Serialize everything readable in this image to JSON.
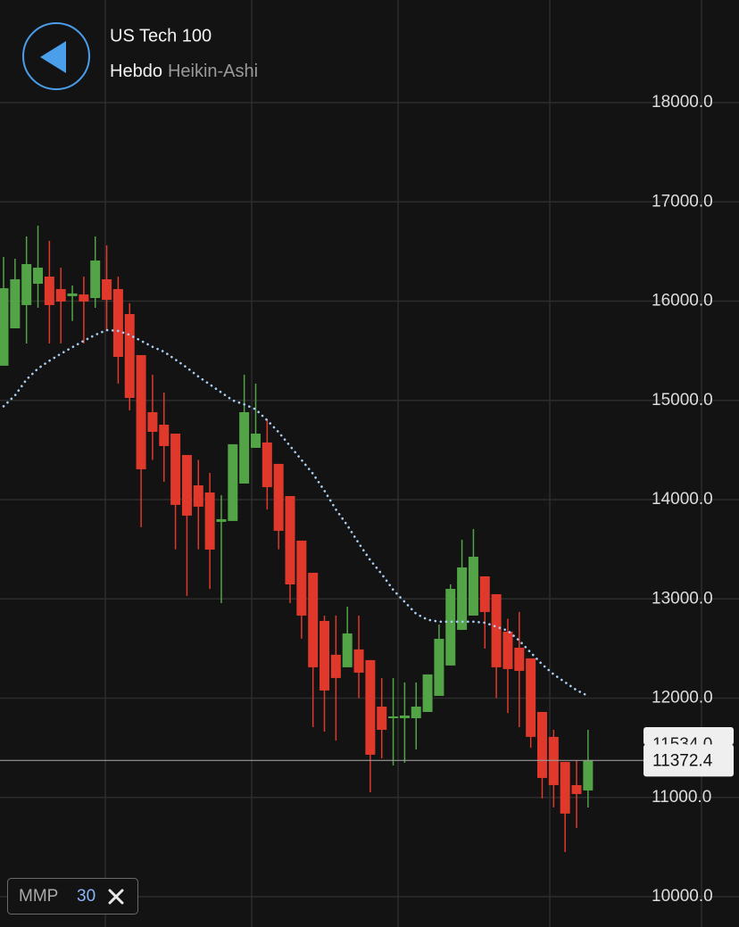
{
  "chart_data": {
    "type": "candlestick",
    "title": "US Tech 100",
    "interval": "Hebdo",
    "chart_style": "Heikin-Ashi",
    "categories": [
      null,
      null,
      null,
      null,
      null,
      null,
      null,
      null,
      null,
      null,
      null,
      null,
      null,
      null,
      null,
      null,
      null,
      null,
      null,
      null,
      null,
      null,
      null,
      null,
      null,
      null,
      null,
      null,
      null,
      null,
      null,
      null,
      null,
      null,
      null,
      null,
      null,
      null,
      null,
      null,
      null,
      null,
      null,
      null,
      null,
      null,
      null,
      null,
      null,
      null,
      null,
      null
    ],
    "open": [
      15349,
      15726,
      15960,
      16175,
      16247,
      16121,
      16050,
      16067,
      16031,
      16220,
      16121,
      15870,
      15456,
      14881,
      14755,
      14665,
      14450,
      14144,
      14072,
      13776,
      13785,
      14162,
      14522,
      14576,
      14360,
      14036,
      13587,
      13263,
      12778,
      12437,
      12311,
      12491,
      12383,
      11915,
      11798,
      11798,
      11798,
      11861,
      12023,
      12329,
      12688,
      12832,
      13227,
      13047,
      12670,
      12508,
      12401,
      11861,
      11610,
      11358,
      11124,
      11070
    ],
    "high": [
      16445,
      16427,
      16652,
      16760,
      16607,
      16337,
      16157,
      16247,
      16652,
      16562,
      16247,
      15978,
      15456,
      15259,
      15079,
      14665,
      14450,
      14400,
      14270,
      14045,
      14558,
      15259,
      15169,
      14809,
      14360,
      14036,
      13587,
      13263,
      12832,
      12832,
      12922,
      12832,
      12383,
      12203,
      12203,
      12158,
      12158,
      12239,
      12742,
      13146,
      13596,
      13704,
      13227,
      13047,
      12800,
      12868,
      12401,
      11861,
      11681,
      11358,
      11376,
      11681
    ],
    "low": [
      15349,
      15726,
      15573,
      15933,
      15573,
      15573,
      15800,
      15573,
      15933,
      15700,
      15169,
      14900,
      13722,
      14400,
      14180,
      13500,
      13030,
      13500,
      13100,
      12958,
      13785,
      14162,
      14522,
      13900,
      13500,
      12958,
      12600,
      11708,
      11663,
      11573,
      12311,
      12000,
      11052,
      11394,
      11322,
      11349,
      11484,
      11861,
      12023,
      12329,
      12688,
      12832,
      12500,
      12000,
      11850,
      11708,
      11500,
      10990,
      10900,
      10450,
      10692,
      10899
    ],
    "close": [
      16130,
      16220,
      16373,
      16337,
      15960,
      15996,
      16077,
      15996,
      16409,
      16013,
      15438,
      15025,
      14306,
      14683,
      14540,
      13947,
      13839,
      13929,
      13497,
      13803,
      14558,
      14881,
      14665,
      14126,
      13686,
      13146,
      12832,
      12311,
      12077,
      12203,
      12652,
      12257,
      11430,
      11681,
      11816,
      11825,
      11915,
      12239,
      12598,
      13101,
      13317,
      13425,
      12868,
      12311,
      12293,
      12275,
      11610,
      11196,
      11124,
      10837,
      11034,
      11376
    ],
    "up_color": "#52a447",
    "down_color": "#e0392b",
    "overlay": {
      "name": "MMP",
      "period": 30,
      "color": "#a9cdf2",
      "values": [
        14940,
        15050,
        15210,
        15320,
        15400,
        15470,
        15535,
        15600,
        15660,
        15708,
        15700,
        15660,
        15600,
        15540,
        15490,
        15410,
        15330,
        15240,
        15160,
        15080,
        15000,
        14960,
        14910,
        14800,
        14680,
        14540,
        14400,
        14260,
        14090,
        13900,
        13740,
        13560,
        13390,
        13250,
        13090,
        12970,
        12850,
        12790,
        12770,
        12770,
        12770,
        12770,
        12760,
        12720,
        12680,
        12580,
        12460,
        12340,
        12240,
        12160,
        12080,
        12023
      ]
    },
    "last_price": 11372.4,
    "previous_price": {
      "value": 11534,
      "label": "11534.0"
    },
    "ylim": [
      9700,
      19000
    ],
    "yticks": [
      {
        "value": 10000,
        "label": "10000.0"
      },
      {
        "value": 11000,
        "label": "11000.0"
      },
      {
        "value": 12000,
        "label": "12000.0"
      },
      {
        "value": 13000,
        "label": "13000.0"
      },
      {
        "value": 14000,
        "label": "14000.0"
      },
      {
        "value": 15000,
        "label": "15000.0"
      },
      {
        "value": 16000,
        "label": "16000.0"
      },
      {
        "value": 17000,
        "label": "17000.0"
      },
      {
        "value": 18000,
        "label": "18000.0"
      }
    ],
    "grid": true
  }
}
